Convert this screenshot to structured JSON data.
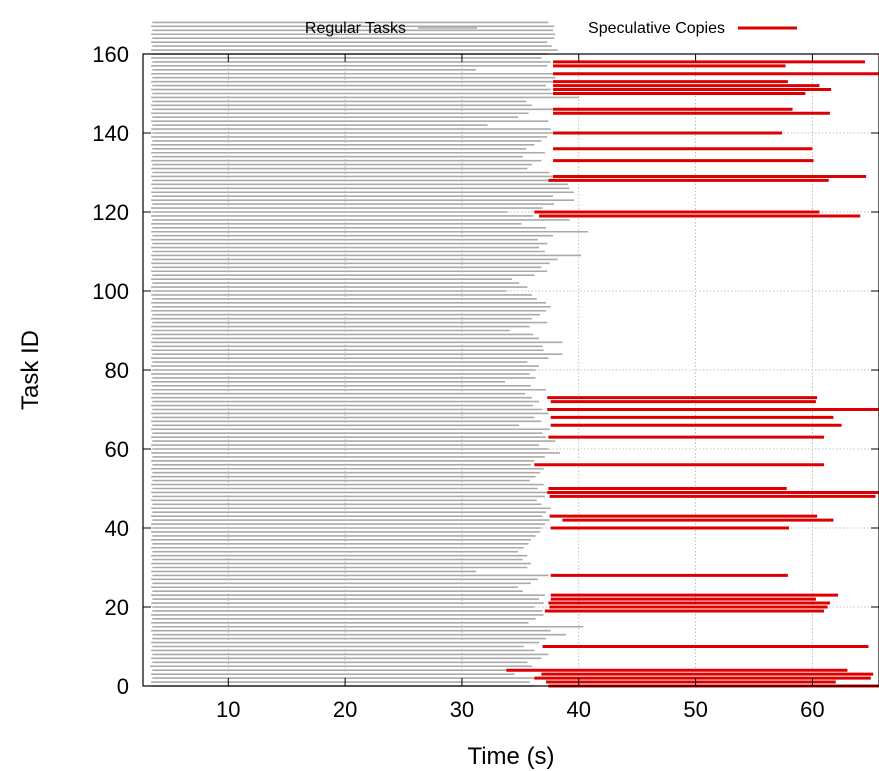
{
  "chart_data": {
    "type": "bar",
    "xlabel": "Time (s)",
    "ylabel": "Task ID",
    "xlim": [
      2.7,
      65.7
    ],
    "ylim": [
      0,
      160
    ],
    "xticks": [
      10,
      20,
      30,
      40,
      50,
      60
    ],
    "yticks": [
      0,
      20,
      40,
      60,
      80,
      100,
      120,
      140,
      160
    ],
    "grid": true,
    "legend_position": "top",
    "series": [
      {
        "name": "Regular Tasks",
        "color": "#aaaaaa",
        "segments": [
          [
            3.5,
            36.2
          ],
          [
            3.4,
            35.8
          ],
          [
            3.5,
            37.0
          ],
          [
            3.4,
            34.5
          ],
          [
            3.5,
            35.2
          ],
          [
            3.3,
            36.0
          ],
          [
            3.5,
            35.6
          ],
          [
            3.4,
            36.8
          ],
          [
            3.5,
            37.4
          ],
          [
            3.4,
            36.2
          ],
          [
            3.5,
            35.3
          ],
          [
            3.4,
            36.6
          ],
          [
            3.5,
            37.2
          ],
          [
            3.5,
            38.9
          ],
          [
            3.4,
            37.6
          ],
          [
            3.5,
            40.4
          ],
          [
            3.4,
            35.7
          ],
          [
            3.5,
            36.3
          ],
          [
            3.4,
            37.0
          ],
          [
            3.5,
            36.9
          ],
          [
            3.5,
            36.2
          ],
          [
            3.4,
            37.0
          ],
          [
            3.5,
            36.6
          ],
          [
            3.4,
            37.1
          ],
          [
            3.5,
            35.2
          ],
          [
            3.4,
            34.8
          ],
          [
            3.5,
            35.9
          ],
          [
            3.4,
            36.5
          ],
          [
            3.5,
            37.4
          ],
          [
            3.4,
            31.2
          ],
          [
            3.5,
            35.6
          ],
          [
            3.4,
            35.9
          ],
          [
            3.5,
            35.2
          ],
          [
            3.4,
            35.6
          ],
          [
            3.5,
            34.8
          ],
          [
            3.4,
            35.3
          ],
          [
            3.5,
            35.7
          ],
          [
            3.4,
            35.9
          ],
          [
            3.5,
            36.3
          ],
          [
            3.4,
            36.7
          ],
          [
            3.5,
            36.8
          ],
          [
            3.4,
            37.1
          ],
          [
            3.5,
            37.5
          ],
          [
            3.4,
            36.9
          ],
          [
            3.5,
            37.2
          ],
          [
            3.4,
            37.6
          ],
          [
            3.5,
            36.8
          ],
          [
            3.4,
            36.4
          ],
          [
            3.5,
            37.1
          ],
          [
            3.4,
            37.3
          ],
          [
            3.5,
            36.5
          ],
          [
            3.4,
            37.0
          ],
          [
            3.5,
            35.8
          ],
          [
            3.4,
            36.3
          ],
          [
            3.5,
            36.7
          ],
          [
            3.4,
            37.0
          ],
          [
            3.5,
            35.9
          ],
          [
            3.4,
            36.2
          ],
          [
            3.5,
            37.1
          ],
          [
            3.4,
            38.4
          ],
          [
            3.5,
            37.4
          ],
          [
            3.4,
            36.6
          ],
          [
            3.5,
            38.0
          ],
          [
            3.4,
            37.2
          ],
          [
            3.5,
            36.9
          ],
          [
            3.4,
            37.5
          ],
          [
            3.5,
            34.9
          ],
          [
            3.4,
            36.8
          ],
          [
            3.5,
            36.2
          ],
          [
            3.4,
            37.4
          ],
          [
            3.5,
            36.9
          ],
          [
            3.4,
            36.1
          ],
          [
            3.5,
            36.6
          ],
          [
            3.4,
            36.0
          ],
          [
            3.5,
            35.4
          ],
          [
            3.4,
            37.2
          ],
          [
            3.5,
            35.9
          ],
          [
            3.4,
            33.7
          ],
          [
            3.5,
            36.3
          ],
          [
            3.4,
            35.8
          ],
          [
            3.5,
            36.3
          ],
          [
            3.4,
            36.6
          ],
          [
            3.5,
            35.6
          ],
          [
            3.4,
            37.4
          ],
          [
            3.5,
            38.6
          ],
          [
            3.4,
            37.0
          ],
          [
            3.5,
            36.9
          ],
          [
            3.4,
            38.6
          ],
          [
            3.5,
            36.6
          ],
          [
            3.4,
            36.1
          ],
          [
            3.5,
            34.1
          ],
          [
            3.4,
            35.8
          ],
          [
            3.5,
            37.3
          ],
          [
            3.4,
            36.0
          ],
          [
            3.5,
            36.7
          ],
          [
            3.4,
            37.2
          ],
          [
            3.5,
            37.6
          ],
          [
            3.4,
            37.2
          ],
          [
            3.5,
            36.4
          ],
          [
            3.4,
            36.0
          ],
          [
            3.5,
            33.8
          ],
          [
            3.4,
            35.6
          ],
          [
            3.5,
            34.9
          ],
          [
            3.4,
            34.3
          ],
          [
            3.5,
            36.2
          ],
          [
            3.4,
            37.3
          ],
          [
            3.5,
            36.8
          ],
          [
            3.4,
            37.5
          ],
          [
            3.5,
            38.2
          ],
          [
            3.4,
            40.2
          ],
          [
            3.5,
            37.1
          ],
          [
            3.4,
            36.6
          ],
          [
            3.5,
            37.3
          ],
          [
            3.4,
            36.5
          ],
          [
            3.5,
            37.8
          ],
          [
            3.4,
            40.8
          ],
          [
            3.5,
            37.2
          ],
          [
            3.4,
            35.1
          ],
          [
            3.5,
            39.2
          ],
          [
            3.4,
            36.1
          ],
          [
            3.5,
            33.9
          ],
          [
            3.4,
            36.9
          ],
          [
            3.5,
            37.9
          ],
          [
            3.4,
            39.6
          ],
          [
            3.5,
            37.8
          ],
          [
            3.4,
            39.6
          ],
          [
            3.5,
            39.2
          ],
          [
            3.4,
            39.1
          ],
          [
            3.5,
            38.6
          ],
          [
            3.4,
            39.2
          ],
          [
            3.5,
            37.5
          ],
          [
            3.4,
            35.6
          ],
          [
            3.5,
            36.0
          ],
          [
            3.4,
            36.8
          ],
          [
            3.5,
            35.2
          ],
          [
            3.4,
            37.1
          ],
          [
            3.5,
            35.5
          ],
          [
            3.4,
            36.2
          ],
          [
            3.5,
            36.8
          ],
          [
            3.4,
            37.3
          ],
          [
            3.5,
            37.9
          ],
          [
            3.4,
            37.6
          ],
          [
            3.5,
            32.2
          ],
          [
            3.4,
            37.4
          ],
          [
            3.5,
            34.8
          ],
          [
            3.4,
            35.7
          ],
          [
            3.5,
            39.6
          ],
          [
            3.4,
            36.0
          ],
          [
            3.5,
            35.5
          ],
          [
            3.4,
            40.0
          ],
          [
            3.5,
            39.3
          ],
          [
            3.4,
            37.6
          ],
          [
            3.5,
            37.2
          ],
          [
            3.4,
            37.8
          ],
          [
            3.5,
            38.0
          ],
          [
            3.4,
            37.9
          ],
          [
            3.5,
            31.2
          ],
          [
            3.4,
            37.3
          ],
          [
            3.5,
            37.6
          ],
          [
            3.4,
            36.8
          ],
          [
            3.5,
            37.4
          ],
          [
            3.4,
            38.2
          ],
          [
            3.5,
            37.7
          ],
          [
            3.4,
            37.3
          ],
          [
            3.5,
            37.9
          ],
          [
            3.4,
            38.0
          ],
          [
            3.5,
            37.8
          ],
          [
            3.4,
            37.9
          ],
          [
            3.5,
            37.4
          ]
        ]
      },
      {
        "name": "Speculative Copies",
        "color": "#dd0000",
        "bars": [
          {
            "id": 0,
            "start": 37.4,
            "end": 65.7
          },
          {
            "id": 1,
            "start": 37.2,
            "end": 62.0
          },
          {
            "id": 2,
            "start": 36.2,
            "end": 65.0
          },
          {
            "id": 3,
            "start": 36.8,
            "end": 65.2
          },
          {
            "id": 4,
            "start": 33.8,
            "end": 63.0
          },
          {
            "id": 10,
            "start": 36.9,
            "end": 64.8
          },
          {
            "id": 19,
            "start": 37.1,
            "end": 61.0
          },
          {
            "id": 20,
            "start": 37.5,
            "end": 61.3
          },
          {
            "id": 21,
            "start": 37.4,
            "end": 61.5
          },
          {
            "id": 22,
            "start": 37.6,
            "end": 60.3
          },
          {
            "id": 23,
            "start": 37.6,
            "end": 62.2
          },
          {
            "id": 28,
            "start": 37.6,
            "end": 57.9
          },
          {
            "id": 40,
            "start": 37.6,
            "end": 58.0
          },
          {
            "id": 42,
            "start": 38.6,
            "end": 61.8
          },
          {
            "id": 43,
            "start": 37.5,
            "end": 60.4
          },
          {
            "id": 48,
            "start": 37.5,
            "end": 65.4
          },
          {
            "id": 49,
            "start": 37.3,
            "end": 65.7
          },
          {
            "id": 50,
            "start": 37.4,
            "end": 57.8
          },
          {
            "id": 56,
            "start": 36.2,
            "end": 61.0
          },
          {
            "id": 63,
            "start": 37.4,
            "end": 61.0
          },
          {
            "id": 66,
            "start": 37.6,
            "end": 62.5
          },
          {
            "id": 68,
            "start": 37.6,
            "end": 61.8
          },
          {
            "id": 70,
            "start": 37.3,
            "end": 65.7
          },
          {
            "id": 72,
            "start": 37.6,
            "end": 60.3
          },
          {
            "id": 73,
            "start": 37.3,
            "end": 60.4
          },
          {
            "id": 120,
            "start": 36.2,
            "end": 60.6
          },
          {
            "id": 119,
            "start": 36.6,
            "end": 64.1
          },
          {
            "id": 128,
            "start": 37.4,
            "end": 61.4
          },
          {
            "id": 129,
            "start": 37.8,
            "end": 64.6
          },
          {
            "id": 133,
            "start": 37.8,
            "end": 60.1
          },
          {
            "id": 136,
            "start": 37.8,
            "end": 60.0
          },
          {
            "id": 140,
            "start": 37.8,
            "end": 57.4
          },
          {
            "id": 145,
            "start": 37.8,
            "end": 61.5
          },
          {
            "id": 146,
            "start": 37.8,
            "end": 58.3
          },
          {
            "id": 150,
            "start": 37.8,
            "end": 59.4
          },
          {
            "id": 151,
            "start": 37.8,
            "end": 61.6
          },
          {
            "id": 152,
            "start": 37.8,
            "end": 60.6
          },
          {
            "id": 153,
            "start": 37.8,
            "end": 57.9
          },
          {
            "id": 155,
            "start": 37.8,
            "end": 65.7
          },
          {
            "id": 157,
            "start": 37.8,
            "end": 57.7
          },
          {
            "id": 158,
            "start": 37.8,
            "end": 64.5
          }
        ]
      }
    ]
  }
}
